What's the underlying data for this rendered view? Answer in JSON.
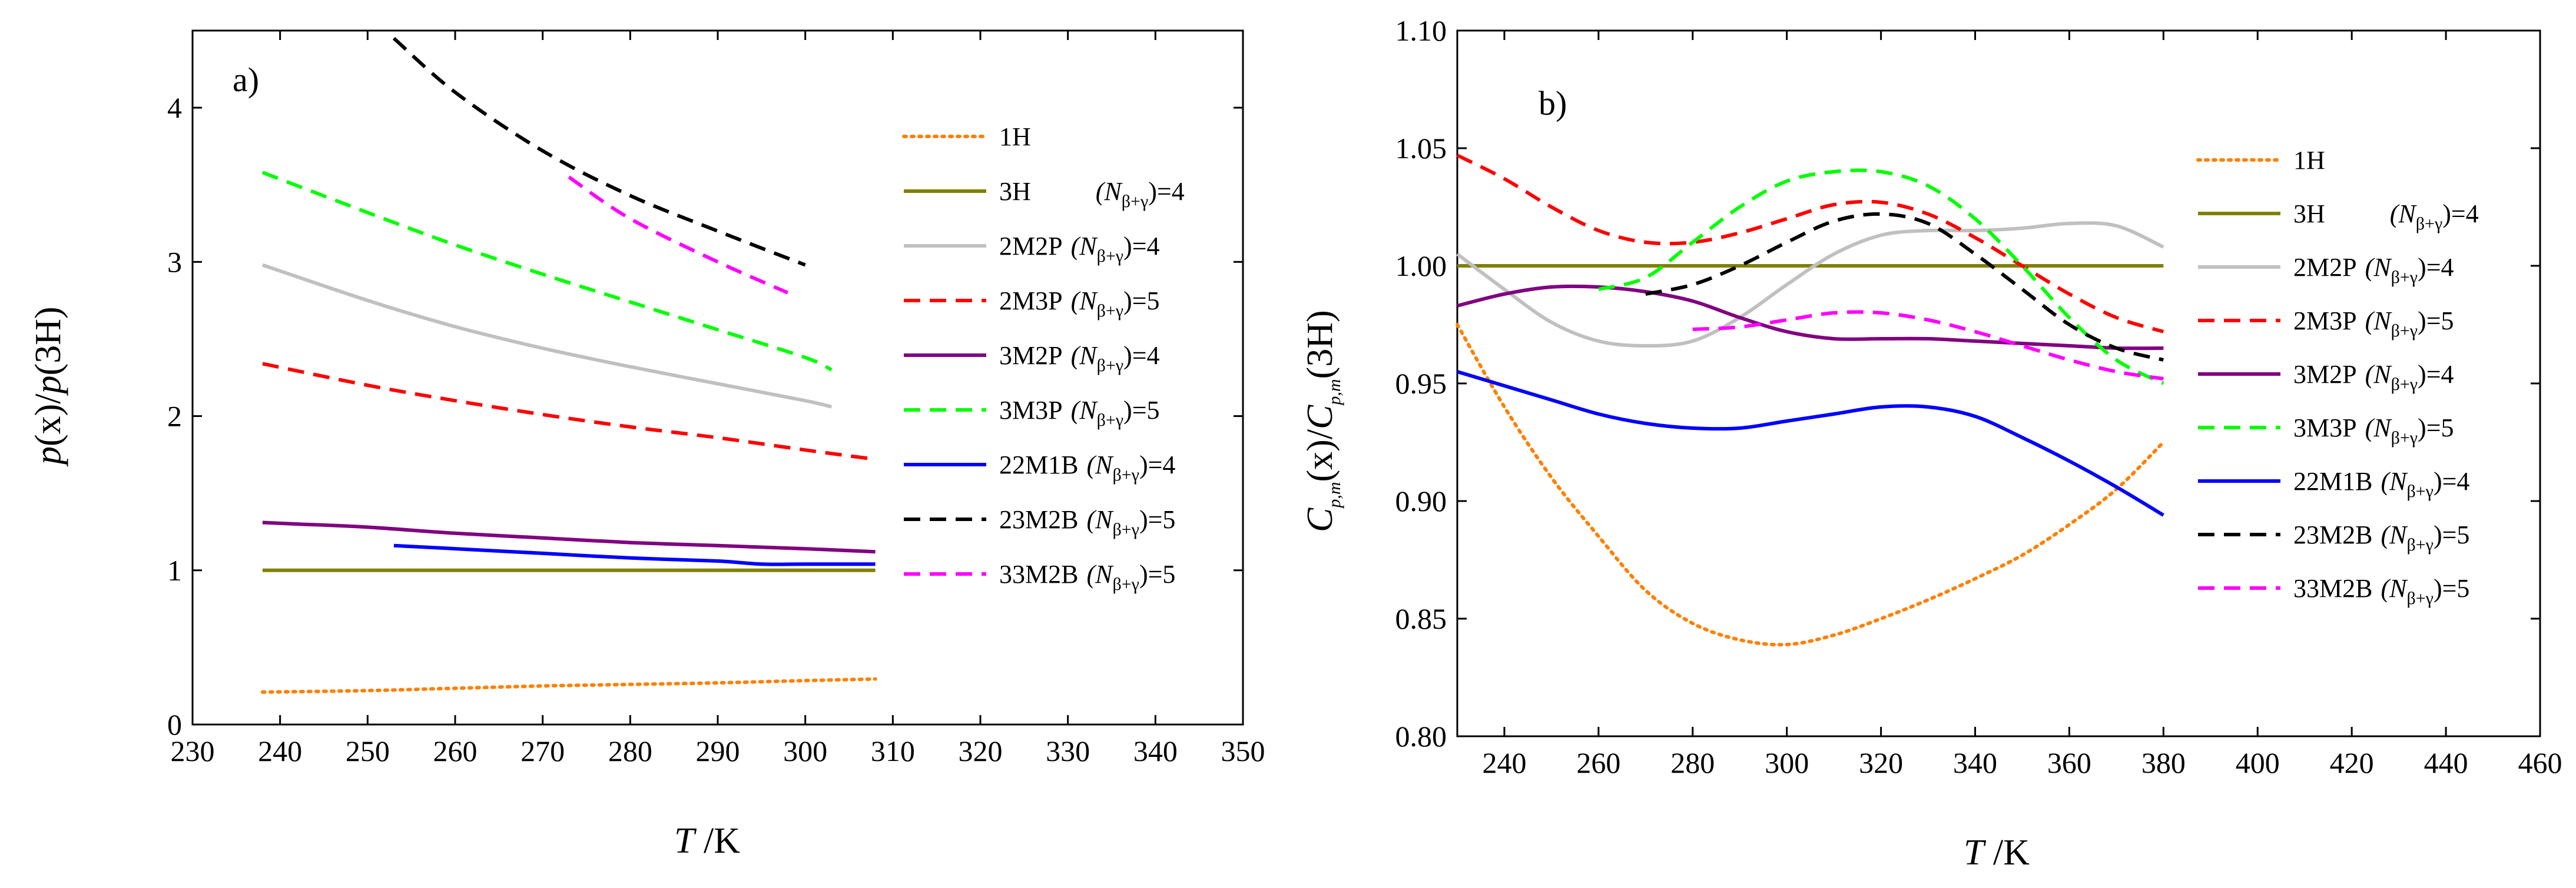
{
  "chart_data": [
    {
      "type": "line",
      "panel_label": "a)",
      "xlabel": {
        "var": "T",
        "unit": " /K"
      },
      "ylabel": "p(x)/p(3H)",
      "xlim": [
        230,
        350
      ],
      "ylim": [
        0,
        4.5
      ],
      "xticks": [
        "230",
        "240",
        "250",
        "260",
        "270",
        "280",
        "290",
        "300",
        "310",
        "320",
        "330",
        "340",
        "350"
      ],
      "yticks": [
        "0",
        "1",
        "2",
        "3",
        "4"
      ],
      "legend_position": "right",
      "series": [
        {
          "key": "1H",
          "name": "1H",
          "suffix": "",
          "sub_n": "",
          "eq": "",
          "color": "#ff8000",
          "dash": "dot",
          "x": [
            238,
            250,
            260,
            270,
            280,
            290,
            300,
            308
          ],
          "y": [
            0.21,
            0.22,
            0.235,
            0.25,
            0.26,
            0.27,
            0.285,
            0.295
          ]
        },
        {
          "key": "3H",
          "name": "3H",
          "suffix": "",
          "sub_n": "(N",
          "eq": ")=4",
          "color": "#808000",
          "dash": "solid",
          "x": [
            238,
            308
          ],
          "y": [
            1.0,
            1.0
          ]
        },
        {
          "key": "2M2P",
          "name": "2M2P",
          "suffix": "",
          "sub_n": "(N",
          "eq": ")=4",
          "color": "#c0c0c0",
          "dash": "solid",
          "x": [
            238,
            250,
            260,
            270,
            280,
            290,
            300,
            303
          ],
          "y": [
            2.98,
            2.75,
            2.58,
            2.44,
            2.32,
            2.21,
            2.1,
            2.06
          ]
        },
        {
          "key": "2M3P",
          "name": "2M3P",
          "suffix": "",
          "sub_n": "(N",
          "eq": ")=5",
          "color": "#ff0000",
          "dash": "dash",
          "x": [
            238,
            250,
            260,
            270,
            280,
            290,
            300,
            308
          ],
          "y": [
            2.34,
            2.2,
            2.1,
            2.01,
            1.93,
            1.86,
            1.78,
            1.72
          ]
        },
        {
          "key": "3M2P",
          "name": "3M2P",
          "suffix": "",
          "sub_n": "(N",
          "eq": ")=4",
          "color": "#800080",
          "dash": "solid",
          "x": [
            238,
            242,
            250,
            260,
            270,
            280,
            290,
            300,
            308
          ],
          "y": [
            1.31,
            1.3,
            1.28,
            1.24,
            1.21,
            1.18,
            1.16,
            1.14,
            1.12
          ]
        },
        {
          "key": "3M3P",
          "name": "3M3P",
          "suffix": "",
          "sub_n": "(N",
          "eq": ")=5",
          "color": "#00ff00",
          "dash": "dash",
          "x": [
            238,
            250,
            260,
            270,
            280,
            290,
            300,
            303
          ],
          "y": [
            3.58,
            3.32,
            3.11,
            2.92,
            2.74,
            2.56,
            2.38,
            2.3
          ]
        },
        {
          "key": "22M1B",
          "name": "22M1B",
          "suffix": "",
          "sub_n": "(N",
          "eq": ")=4",
          "color": "#0000ff",
          "dash": "solid",
          "x": [
            253,
            260,
            270,
            280,
            290,
            295,
            300,
            308
          ],
          "y": [
            1.16,
            1.14,
            1.11,
            1.08,
            1.06,
            1.04,
            1.04,
            1.04
          ]
        },
        {
          "key": "23M2B",
          "name": "23M2B",
          "suffix": "",
          "sub_n": "(N",
          "eq": ")=5",
          "color": "#000000",
          "dash": "dash",
          "x": [
            253,
            260,
            270,
            280,
            290,
            300
          ],
          "y": [
            4.45,
            4.1,
            3.72,
            3.43,
            3.2,
            2.98
          ]
        },
        {
          "key": "33M2B",
          "name": "33M2B",
          "suffix": "",
          "sub_n": "(N",
          "eq": ")=5",
          "color": "#ff00ff",
          "dash": "dash",
          "x": [
            273,
            280,
            290,
            298
          ],
          "y": [
            3.55,
            3.28,
            3.0,
            2.8
          ]
        }
      ]
    },
    {
      "type": "line",
      "panel_label": "b)",
      "xlabel": {
        "var": "T",
        "unit": " /K"
      },
      "ylabel": "Cp,m(x)/Cp,m(3H)",
      "xlim": [
        230,
        460
      ],
      "ylim": [
        0.8,
        1.1
      ],
      "xticks": [
        "240",
        "260",
        "280",
        "300",
        "320",
        "340",
        "360",
        "380",
        "400",
        "420",
        "440",
        "460"
      ],
      "yticks": [
        "0.80",
        "0.85",
        "0.90",
        "0.95",
        "1.00",
        "1.05",
        "1.10"
      ],
      "legend_position": "right",
      "series": [
        {
          "key": "1H",
          "name": "1H",
          "sub_n": "",
          "eq": "",
          "color": "#ff8000",
          "dash": "dot",
          "x": [
            230,
            240,
            250,
            260,
            270,
            280,
            290,
            300,
            310,
            320,
            330,
            340,
            350,
            360,
            370,
            380
          ],
          "y": [
            0.975,
            0.94,
            0.91,
            0.885,
            0.862,
            0.848,
            0.841,
            0.839,
            0.843,
            0.85,
            0.858,
            0.867,
            0.877,
            0.89,
            0.905,
            0.925
          ]
        },
        {
          "key": "3H",
          "name": "3H",
          "sub_n": "(N",
          "eq": ")=4",
          "color": "#808000",
          "dash": "solid",
          "x": [
            230,
            380
          ],
          "y": [
            1.0,
            1.0
          ]
        },
        {
          "key": "2M2P",
          "name": "2M2P",
          "sub_n": "(N",
          "eq": ")=4",
          "color": "#c0c0c0",
          "dash": "solid",
          "x": [
            230,
            240,
            250,
            260,
            270,
            280,
            290,
            300,
            310,
            320,
            330,
            340,
            350,
            360,
            370,
            380
          ],
          "y": [
            1.005,
            0.99,
            0.976,
            0.968,
            0.966,
            0.968,
            0.978,
            0.992,
            1.005,
            1.013,
            1.015,
            1.015,
            1.016,
            1.018,
            1.017,
            1.008
          ]
        },
        {
          "key": "2M3P",
          "name": "2M3P",
          "sub_n": "(N",
          "eq": ")=5",
          "color": "#ff0000",
          "dash": "dash",
          "x": [
            230,
            240,
            250,
            260,
            270,
            280,
            290,
            300,
            310,
            320,
            330,
            340,
            350,
            360,
            370,
            380
          ],
          "y": [
            1.047,
            1.037,
            1.025,
            1.015,
            1.01,
            1.01,
            1.014,
            1.02,
            1.026,
            1.027,
            1.022,
            1.012,
            1.0,
            0.988,
            0.978,
            0.972
          ]
        },
        {
          "key": "3M2P",
          "name": "3M2P",
          "sub_n": "(N",
          "eq": ")=4",
          "color": "#800080",
          "dash": "solid",
          "x": [
            230,
            240,
            250,
            260,
            270,
            280,
            290,
            300,
            310,
            320,
            330,
            340,
            350,
            360,
            370,
            380
          ],
          "y": [
            0.983,
            0.988,
            0.991,
            0.991,
            0.989,
            0.985,
            0.978,
            0.972,
            0.969,
            0.969,
            0.969,
            0.968,
            0.967,
            0.966,
            0.965,
            0.965
          ]
        },
        {
          "key": "3M3P",
          "name": "3M3P",
          "sub_n": "(N",
          "eq": ")=5",
          "color": "#00ff00",
          "dash": "dash",
          "x": [
            260,
            270,
            280,
            290,
            300,
            310,
            320,
            330,
            340,
            350,
            360,
            370,
            380
          ],
          "y": [
            0.99,
            0.995,
            1.01,
            1.025,
            1.036,
            1.04,
            1.04,
            1.034,
            1.02,
            1.0,
            0.978,
            0.96,
            0.95
          ]
        },
        {
          "key": "22M1B",
          "name": "22M1B",
          "sub_n": "(N",
          "eq": ")=4",
          "color": "#0000ff",
          "dash": "solid",
          "x": [
            230,
            240,
            250,
            260,
            270,
            280,
            290,
            300,
            310,
            320,
            330,
            340,
            350,
            360,
            370,
            380
          ],
          "y": [
            0.955,
            0.949,
            0.943,
            0.937,
            0.933,
            0.931,
            0.931,
            0.934,
            0.937,
            0.94,
            0.94,
            0.936,
            0.927,
            0.917,
            0.906,
            0.894
          ]
        },
        {
          "key": "23M2B",
          "name": "23M2B",
          "sub_n": "(N",
          "eq": ")=5",
          "color": "#000000",
          "dash": "dash",
          "x": [
            270,
            280,
            290,
            300,
            310,
            320,
            330,
            340,
            350,
            360,
            370,
            380
          ],
          "y": [
            0.988,
            0.992,
            1.0,
            1.01,
            1.019,
            1.022,
            1.018,
            1.005,
            0.99,
            0.975,
            0.965,
            0.96
          ]
        },
        {
          "key": "33M2B",
          "name": "33M2B",
          "sub_n": "(N",
          "eq": ")=5",
          "color": "#ff00ff",
          "dash": "dash",
          "x": [
            280,
            290,
            300,
            310,
            320,
            330,
            340,
            350,
            360,
            370,
            380
          ],
          "y": [
            0.973,
            0.974,
            0.977,
            0.98,
            0.98,
            0.977,
            0.972,
            0.966,
            0.96,
            0.955,
            0.952
          ]
        }
      ]
    }
  ],
  "legend": {
    "subscript": "β+γ",
    "label_1H": "1H",
    "label_3H": "3H",
    "label_2M2P": "2M2P",
    "label_2M3P": "2M3P",
    "label_3M2P": "3M2P",
    "label_3M3P": "3M3P",
    "label_22M1B": "22M1B",
    "label_23M2B": "23M2B",
    "label_33M2B": "33M2B"
  },
  "ylabel_a": {
    "p1": "p",
    "mid1": "(x)/",
    "p2": "p",
    "tail": "(3H)"
  },
  "ylabel_b": {
    "c": "C",
    "sub": "p,m",
    "mid": "(x)/",
    "tail": "(3H)"
  },
  "xlabel": {
    "var": "T",
    "unit": " /K"
  }
}
